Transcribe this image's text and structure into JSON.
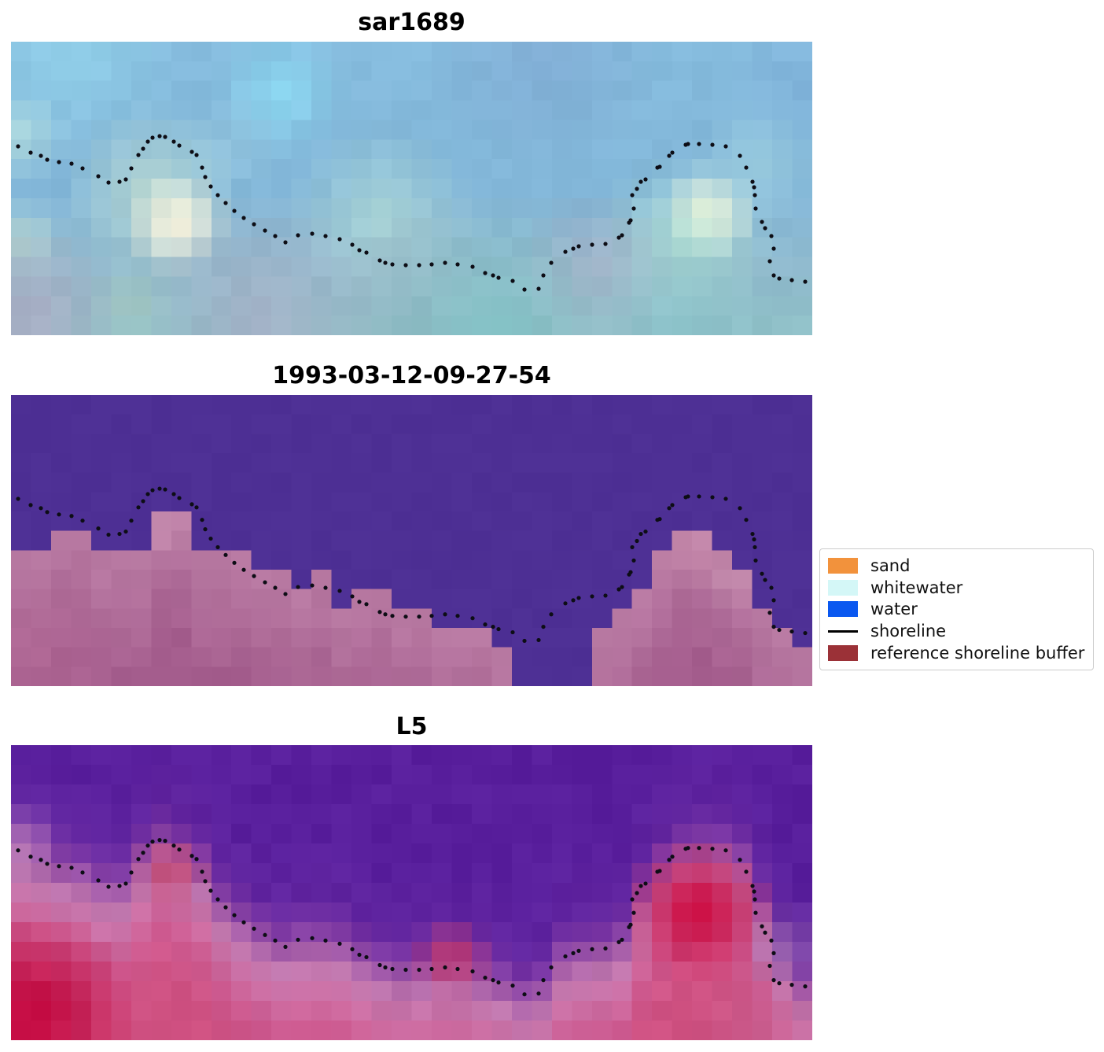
{
  "panels": [
    {
      "title": "sar1689",
      "kind": "SAR RGB composite image tile",
      "render": {
        "mode": "field",
        "jitter": 4,
        "base": [
          [
            0,
            "#86BCDE"
          ],
          [
            7,
            "#82B6D8"
          ],
          [
            11,
            "#90BACE"
          ],
          [
            14,
            "#90C0C8"
          ]
        ],
        "blobs": [
          [
            3,
            0.6,
            5.5,
            "#90CEE8",
            0.85
          ],
          [
            13.5,
            2.6,
            3.4,
            "#8CD6F0",
            0.9
          ],
          [
            0.5,
            4.8,
            2.4,
            "#B8E0DC",
            0.6
          ],
          [
            11,
            5.4,
            2.8,
            "#9CCCE2",
            0.5
          ],
          [
            7.0,
            7.6,
            4.4,
            "#CFE8D2",
            0.55
          ],
          [
            8.3,
            9.3,
            2.7,
            "#F3F2DE",
            1.0
          ],
          [
            0.6,
            10.3,
            2.2,
            "#C2E4D4",
            0.6
          ],
          [
            18.5,
            9.0,
            4.8,
            "#B2DCD8",
            0.65
          ],
          [
            34.8,
            8.8,
            2.5,
            "#F8F5DF",
            1.0
          ],
          [
            33.6,
            10.3,
            4.6,
            "#B6E6D6",
            0.6
          ],
          [
            37.2,
            6.3,
            3.2,
            "#A6D6E0",
            0.5
          ],
          [
            26.5,
            0.6,
            6.0,
            "#80A8D2",
            0.55
          ],
          [
            39.5,
            2,
            4,
            "#7FB0DA",
            0.5
          ],
          [
            1,
            13.9,
            4.8,
            "#A8B0C6",
            0.9
          ],
          [
            12.5,
            14.2,
            6.2,
            "#A4B2C8",
            0.8
          ],
          [
            6,
            13.3,
            2.2,
            "#AECCBE",
            0.5
          ],
          [
            29,
            12,
            4.2,
            "#AEADC5",
            0.55
          ],
          [
            20.5,
            13.2,
            5,
            "#9BB2C2",
            0.5
          ],
          [
            24,
            14.8,
            6.6,
            "#84C2C6",
            0.8
          ],
          [
            33,
            14.6,
            5.0,
            "#8CC4CC",
            0.6
          ]
        ]
      }
    },
    {
      "title": "1993-03-12-09-27-54",
      "kind": "classified image: water class over reference shoreline buffer",
      "render": {
        "mode": "landmask",
        "jitter": 4,
        "water": "#4E3095",
        "water_jitter": 2,
        "land_top_rows": [
          8,
          8,
          7,
          7,
          8,
          8,
          8,
          6,
          6,
          8,
          8,
          8,
          9,
          9,
          10,
          9,
          11,
          10,
          10,
          11,
          11,
          12,
          12,
          12,
          13,
          15,
          15,
          15,
          15,
          12,
          11,
          10,
          8,
          7,
          7,
          8,
          9,
          11,
          12,
          13
        ],
        "land_top_color": "#B97AA3",
        "land_bottom_color": "#A55E8E",
        "blobs": [
          [
            7.5,
            6.8,
            2.0,
            "#C78DB0",
            0.8
          ],
          [
            34,
            7.8,
            2.5,
            "#C98DAE",
            0.75
          ],
          [
            36,
            9.5,
            1.8,
            "#C791AF",
            0.6
          ],
          [
            1.5,
            13.5,
            4.5,
            "#B36A96",
            0.5
          ]
        ]
      }
    },
    {
      "title": "L5",
      "kind": "Landsat 5 false-colour image tile",
      "render": {
        "mode": "shoreramp",
        "jitter": 5,
        "shore_rows": [
          5.4,
          5.8,
          6.2,
          6.4,
          7.0,
          7.1,
          5.7,
          4.9,
          5.4,
          6.3,
          8.0,
          8.9,
          9.6,
          10.1,
          9.9,
          9.9,
          10.1,
          10.7,
          11.2,
          11.4,
          11.4,
          11.3,
          11.4,
          11.7,
          12.1,
          12.6,
          12.3,
          10.8,
          10.5,
          10.3,
          9.9,
          7.6,
          6.3,
          5.4,
          5.2,
          5.3,
          5.9,
          8.1,
          10.9,
          12.2
        ],
        "ramp": [
          [
            -5,
            "#591F9D"
          ],
          [
            -2,
            "#6226A1"
          ],
          [
            -0.8,
            "#7935A4"
          ],
          [
            0.3,
            "#A058A9"
          ],
          [
            1.4,
            "#C178AF"
          ],
          [
            2.8,
            "#CC6FA4"
          ],
          [
            4.5,
            "#CE5B91"
          ],
          [
            7,
            "#D05384"
          ],
          [
            10,
            "#CE4F7F"
          ]
        ],
        "blobs": [
          [
            0.4,
            5.2,
            2.4,
            "#C98DBC",
            0.55
          ],
          [
            38.5,
            10.3,
            2.4,
            "#9F6FB2",
            0.55
          ],
          [
            37.5,
            14.3,
            3.4,
            "#CB6697",
            0.5
          ],
          [
            8,
            6.3,
            1.9,
            "#C64168",
            0.7
          ],
          [
            22,
            10.8,
            2.1,
            "#D03A63",
            0.7
          ],
          [
            34.3,
            8.4,
            3.7,
            "#CC1146",
            0.95
          ],
          [
            1,
            13.8,
            5.5,
            "#C30B42",
            0.95
          ]
        ]
      }
    }
  ],
  "legend": {
    "items": [
      {
        "label": "sand",
        "color": "#F2923C",
        "swatch": "patch"
      },
      {
        "label": "whitewater",
        "color": "#D4F7F7",
        "swatch": "patch"
      },
      {
        "label": "water",
        "color": "#0A58F0",
        "swatch": "patch"
      },
      {
        "label": "shoreline",
        "color": "#000000",
        "swatch": "line"
      },
      {
        "label": "reference shoreline buffer",
        "color": "#9B3137",
        "swatch": "patch"
      }
    ]
  },
  "shoreline_points": [
    [
      9,
      133
    ],
    [
      25,
      141
    ],
    [
      38,
      145
    ],
    [
      46,
      150
    ],
    [
      61,
      153
    ],
    [
      77,
      155
    ],
    [
      91,
      161
    ],
    [
      111,
      171
    ],
    [
      124,
      179
    ],
    [
      138,
      178
    ],
    [
      146,
      175
    ],
    [
      153,
      161
    ],
    [
      162,
      144
    ],
    [
      168,
      136
    ],
    [
      174,
      127
    ],
    [
      180,
      122
    ],
    [
      189,
      120
    ],
    [
      196,
      121
    ],
    [
      207,
      127
    ],
    [
      214,
      132
    ],
    [
      230,
      140
    ],
    [
      236,
      144
    ],
    [
      243,
      160
    ],
    [
      247,
      172
    ],
    [
      254,
      184
    ],
    [
      263,
      195
    ],
    [
      273,
      205
    ],
    [
      284,
      215
    ],
    [
      296,
      224
    ],
    [
      309,
      232
    ],
    [
      323,
      240
    ],
    [
      336,
      247
    ],
    [
      349,
      255
    ],
    [
      365,
      246
    ],
    [
      383,
      244
    ],
    [
      400,
      247
    ],
    [
      418,
      251
    ],
    [
      434,
      258
    ],
    [
      443,
      265
    ],
    [
      452,
      268
    ],
    [
      469,
      278
    ],
    [
      476,
      281
    ],
    [
      485,
      283
    ],
    [
      502,
      284
    ],
    [
      519,
      284
    ],
    [
      535,
      283
    ],
    [
      552,
      281
    ],
    [
      568,
      283
    ],
    [
      587,
      286
    ],
    [
      603,
      294
    ],
    [
      613,
      297
    ],
    [
      620,
      300
    ],
    [
      638,
      304
    ],
    [
      653,
      315
    ],
    [
      671,
      314
    ],
    [
      677,
      297
    ],
    [
      687,
      281
    ],
    [
      705,
      267
    ],
    [
      715,
      263
    ],
    [
      722,
      260
    ],
    [
      739,
      258
    ],
    [
      756,
      257
    ],
    [
      773,
      249
    ],
    [
      777,
      246
    ],
    [
      786,
      230
    ],
    [
      788,
      227
    ],
    [
      792,
      212
    ],
    [
      790,
      195
    ],
    [
      796,
      187
    ],
    [
      801,
      178
    ],
    [
      807,
      175
    ],
    [
      822,
      160
    ],
    [
      825,
      159
    ],
    [
      837,
      145
    ],
    [
      841,
      141
    ],
    [
      858,
      131
    ],
    [
      861,
      130
    ],
    [
      875,
      130
    ],
    [
      892,
      131
    ],
    [
      909,
      133
    ],
    [
      927,
      145
    ],
    [
      935,
      160
    ],
    [
      943,
      178
    ],
    [
      945,
      185
    ],
    [
      946,
      195
    ],
    [
      947,
      212
    ],
    [
      955,
      229
    ],
    [
      959,
      237
    ],
    [
      967,
      247
    ],
    [
      970,
      263
    ],
    [
      965,
      279
    ],
    [
      970,
      297
    ],
    [
      977,
      301
    ],
    [
      993,
      303
    ],
    [
      1010,
      305
    ]
  ],
  "chart_data": {
    "type": "heatmap",
    "title": "",
    "panels": [
      {
        "title": "sar1689",
        "kind": "SAR RGB composite image"
      },
      {
        "title": "1993-03-12-09-27-54",
        "kind": "classified image (water vs reference shoreline buffer)"
      },
      {
        "title": "L5",
        "kind": "Landsat 5 false-colour image"
      }
    ],
    "grid": {
      "cols": 40,
      "rows": 15
    },
    "legend_entries": [
      "sand",
      "whitewater",
      "water",
      "shoreline",
      "reference shoreline buffer"
    ],
    "shoreline_scatter": "dotted black markers; vertex coordinates stored in shoreline_points (panel pixel units, 1019x373)"
  }
}
